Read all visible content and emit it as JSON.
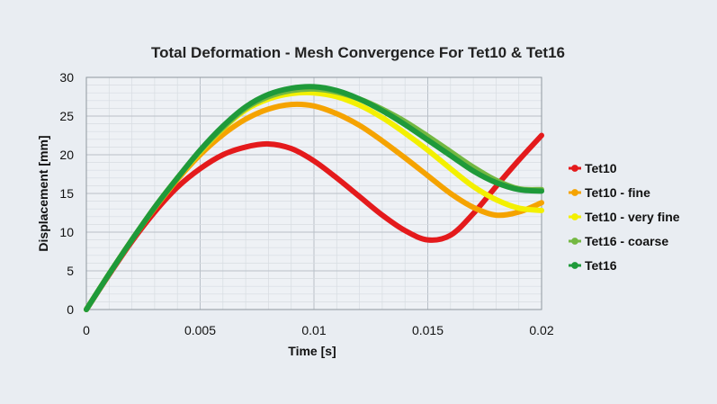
{
  "chart_data": {
    "type": "line",
    "title": "Total Deformation - Mesh Convergence For Tet10 & Tet16",
    "xlabel": "Time [s]",
    "ylabel": "Displacement [mm]",
    "xlim": [
      0,
      0.02
    ],
    "ylim": [
      0,
      30
    ],
    "x_ticks": [
      "0",
      "0.005",
      "0.01",
      "0.015",
      "0.02"
    ],
    "y_ticks": [
      "0",
      "5",
      "10",
      "15",
      "20",
      "25",
      "30"
    ],
    "grid": true,
    "legend_position": "right",
    "x": [
      0,
      0.001,
      0.002,
      0.003,
      0.004,
      0.005,
      0.006,
      0.007,
      0.008,
      0.009,
      0.01,
      0.011,
      0.012,
      0.013,
      0.014,
      0.015,
      0.016,
      0.017,
      0.018,
      0.019,
      0.02
    ],
    "series": [
      {
        "name": "Tet10",
        "color": "#e41a1c",
        "values": [
          0,
          4.5,
          8.8,
          12.6,
          15.8,
          18.2,
          20.0,
          21.0,
          21.4,
          20.8,
          19.2,
          17.0,
          14.6,
          12.2,
          10.2,
          9.0,
          9.6,
          12.4,
          15.9,
          19.3,
          22.5
        ]
      },
      {
        "name": "Tet10 - fine",
        "color": "#f5a300",
        "values": [
          0,
          4.6,
          9.0,
          13.1,
          16.8,
          20.0,
          22.6,
          24.6,
          25.9,
          26.5,
          26.3,
          25.3,
          23.8,
          21.8,
          19.6,
          17.3,
          15.0,
          13.2,
          12.2,
          12.6,
          13.8
        ]
      },
      {
        "name": "Tet10 - very fine",
        "color": "#f3f000",
        "values": [
          0,
          4.6,
          9.0,
          13.2,
          17.0,
          20.4,
          23.4,
          25.8,
          27.2,
          27.9,
          28.0,
          27.5,
          26.4,
          24.8,
          22.8,
          20.6,
          18.2,
          15.9,
          14.2,
          13.1,
          12.8
        ]
      },
      {
        "name": "Tet16 - coarse",
        "color": "#74b842",
        "values": [
          0,
          4.6,
          9.0,
          13.2,
          17.0,
          20.5,
          23.5,
          26.0,
          27.5,
          28.3,
          28.5,
          28.1,
          27.2,
          25.9,
          24.3,
          22.4,
          20.4,
          18.4,
          16.7,
          15.6,
          15.5
        ]
      },
      {
        "name": "Tet16",
        "color": "#1f9a3a",
        "values": [
          0,
          4.6,
          9.0,
          13.2,
          17.0,
          20.6,
          23.7,
          26.2,
          27.8,
          28.6,
          28.8,
          28.3,
          27.2,
          25.7,
          23.9,
          21.9,
          19.9,
          17.9,
          16.4,
          15.5,
          15.3
        ]
      }
    ]
  }
}
